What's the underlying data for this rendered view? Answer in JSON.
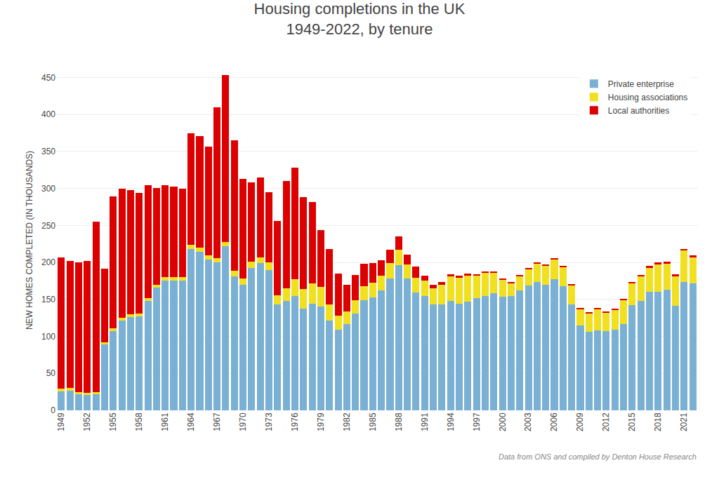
{
  "chart_data": {
    "type": "bar",
    "stacked": true,
    "title": "Housing completions in the UK\n1949-2022, by tenure",
    "y_label": "NEW HOMES COMPLETED (IN THOUSANDS)",
    "annotations": [
      "Data from ONS and compiled by Denton House Research"
    ],
    "categories": [
      "1949",
      null,
      null,
      "1952",
      null,
      null,
      "1955",
      null,
      null,
      "1958",
      null,
      null,
      "1961",
      null,
      null,
      "1964",
      null,
      null,
      "1967",
      null,
      null,
      "1970",
      null,
      null,
      "1973",
      null,
      null,
      "1976",
      null,
      null,
      "1979",
      null,
      null,
      "1982",
      null,
      null,
      "1985",
      null,
      null,
      "1988",
      null,
      null,
      "1991",
      null,
      null,
      "1994",
      null,
      null,
      "1997",
      null,
      null,
      "2000",
      null,
      null,
      "2003",
      null,
      null,
      "2006",
      null,
      null,
      "2009",
      null,
      null,
      "2012",
      null,
      null,
      "2015",
      null,
      null,
      "2018",
      null,
      null,
      "2021",
      null
    ],
    "series": [
      {
        "name": "Private enterprise",
        "color": "#7ab0d4",
        "values": [
          26,
          27,
          22,
          21,
          22,
          89,
          107,
          121,
          126,
          127,
          148,
          166,
          175,
          175,
          175,
          218,
          214,
          204,
          200,
          222,
          181,
          170,
          193,
          199,
          190,
          143,
          148,
          155,
          138,
          144,
          140,
          121,
          109,
          117,
          131,
          149,
          153,
          162,
          178,
          196,
          178,
          159,
          155,
          143,
          143,
          148,
          144,
          147,
          152,
          155,
          158,
          154,
          155,
          162,
          169,
          174,
          170,
          177,
          168,
          143,
          115,
          106,
          108,
          107,
          109,
          117,
          142,
          148,
          160,
          160,
          163,
          141,
          174,
          172
        ]
      },
      {
        "name": "Housing associations",
        "color": "#f0e020",
        "values": [
          3,
          3,
          3,
          3,
          3,
          3,
          4,
          4,
          4,
          4,
          4,
          4,
          5,
          5,
          5,
          6,
          6,
          6,
          6,
          6,
          8,
          8,
          8,
          8,
          10,
          13,
          17,
          22,
          26,
          28,
          27,
          22,
          19,
          17,
          18,
          19,
          20,
          20,
          21,
          21,
          19,
          20,
          20,
          22,
          27,
          33,
          35,
          35,
          30,
          31,
          28,
          23,
          17,
          20,
          22,
          25,
          26,
          27,
          26,
          26,
          22,
          25,
          29,
          25,
          27,
          32,
          30,
          33,
          33,
          37,
          35,
          40,
          42,
          35
        ]
      },
      {
        "name": "Local authorities",
        "color": "#dd0000",
        "values": [
          178,
          172,
          175,
          178,
          230,
          100,
          178,
          175,
          168,
          163,
          152,
          131,
          124,
          123,
          120,
          151,
          151,
          147,
          204,
          225,
          176,
          135,
          107,
          108,
          95,
          100,
          145,
          151,
          124,
          110,
          77,
          75,
          57,
          36,
          34,
          30,
          26,
          21,
          18,
          18,
          14,
          15,
          7,
          5,
          4,
          3,
          3,
          3,
          2,
          2,
          2,
          1,
          1,
          1,
          1,
          1,
          1,
          1,
          1,
          1,
          1,
          1,
          1,
          1,
          1,
          1,
          1,
          2,
          2,
          3,
          3,
          3,
          2,
          3
        ]
      }
    ],
    "ylim": [
      0,
      460
    ],
    "yticks": [
      0,
      50,
      100,
      150,
      200,
      250,
      300,
      350,
      400,
      450
    ],
    "grid": true,
    "legend": "upper right"
  }
}
